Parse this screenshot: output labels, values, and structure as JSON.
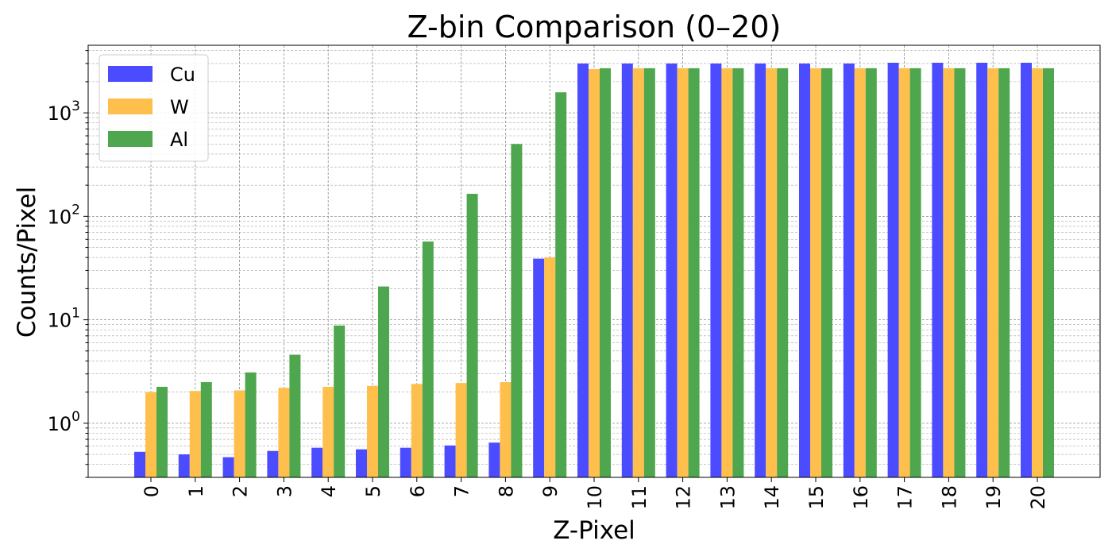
{
  "chart_data": {
    "type": "bar",
    "title": "Z-bin Comparison (0–20)",
    "xlabel": "Z-Pixel",
    "ylabel": "Counts/Pixel",
    "yscale": "log",
    "ylim": [
      0.3,
      4500
    ],
    "grid": true,
    "legend_position": "top-left",
    "categories": [
      "0",
      "1",
      "2",
      "3",
      "4",
      "5",
      "6",
      "7",
      "8",
      "9",
      "10",
      "11",
      "12",
      "13",
      "14",
      "15",
      "16",
      "17",
      "18",
      "19",
      "20"
    ],
    "y_ticks": [
      {
        "value": 1,
        "base": "10",
        "exp": "0"
      },
      {
        "value": 10,
        "base": "10",
        "exp": "1"
      },
      {
        "value": 100,
        "base": "10",
        "exp": "2"
      },
      {
        "value": 1000,
        "base": "10",
        "exp": "3"
      }
    ],
    "series": [
      {
        "name": "Cu",
        "color": "#4b4bff",
        "values": [
          0.53,
          0.5,
          0.47,
          0.54,
          0.58,
          0.56,
          0.58,
          0.61,
          0.65,
          39,
          3000,
          3000,
          3000,
          3000,
          3000,
          3000,
          3000,
          3050,
          3050,
          3050,
          3050
        ]
      },
      {
        "name": "W",
        "color": "#ffbf4d",
        "values": [
          2.0,
          2.05,
          2.08,
          2.2,
          2.25,
          2.3,
          2.4,
          2.45,
          2.5,
          40,
          2650,
          2700,
          2700,
          2700,
          2700,
          2700,
          2700,
          2700,
          2700,
          2700,
          2700
        ]
      },
      {
        "name": "Al",
        "color": "#4ea64e",
        "values": [
          2.25,
          2.5,
          3.1,
          4.6,
          8.8,
          21,
          57,
          165,
          500,
          1580,
          2700,
          2700,
          2700,
          2700,
          2700,
          2700,
          2700,
          2700,
          2700,
          2700,
          2700
        ]
      }
    ]
  }
}
